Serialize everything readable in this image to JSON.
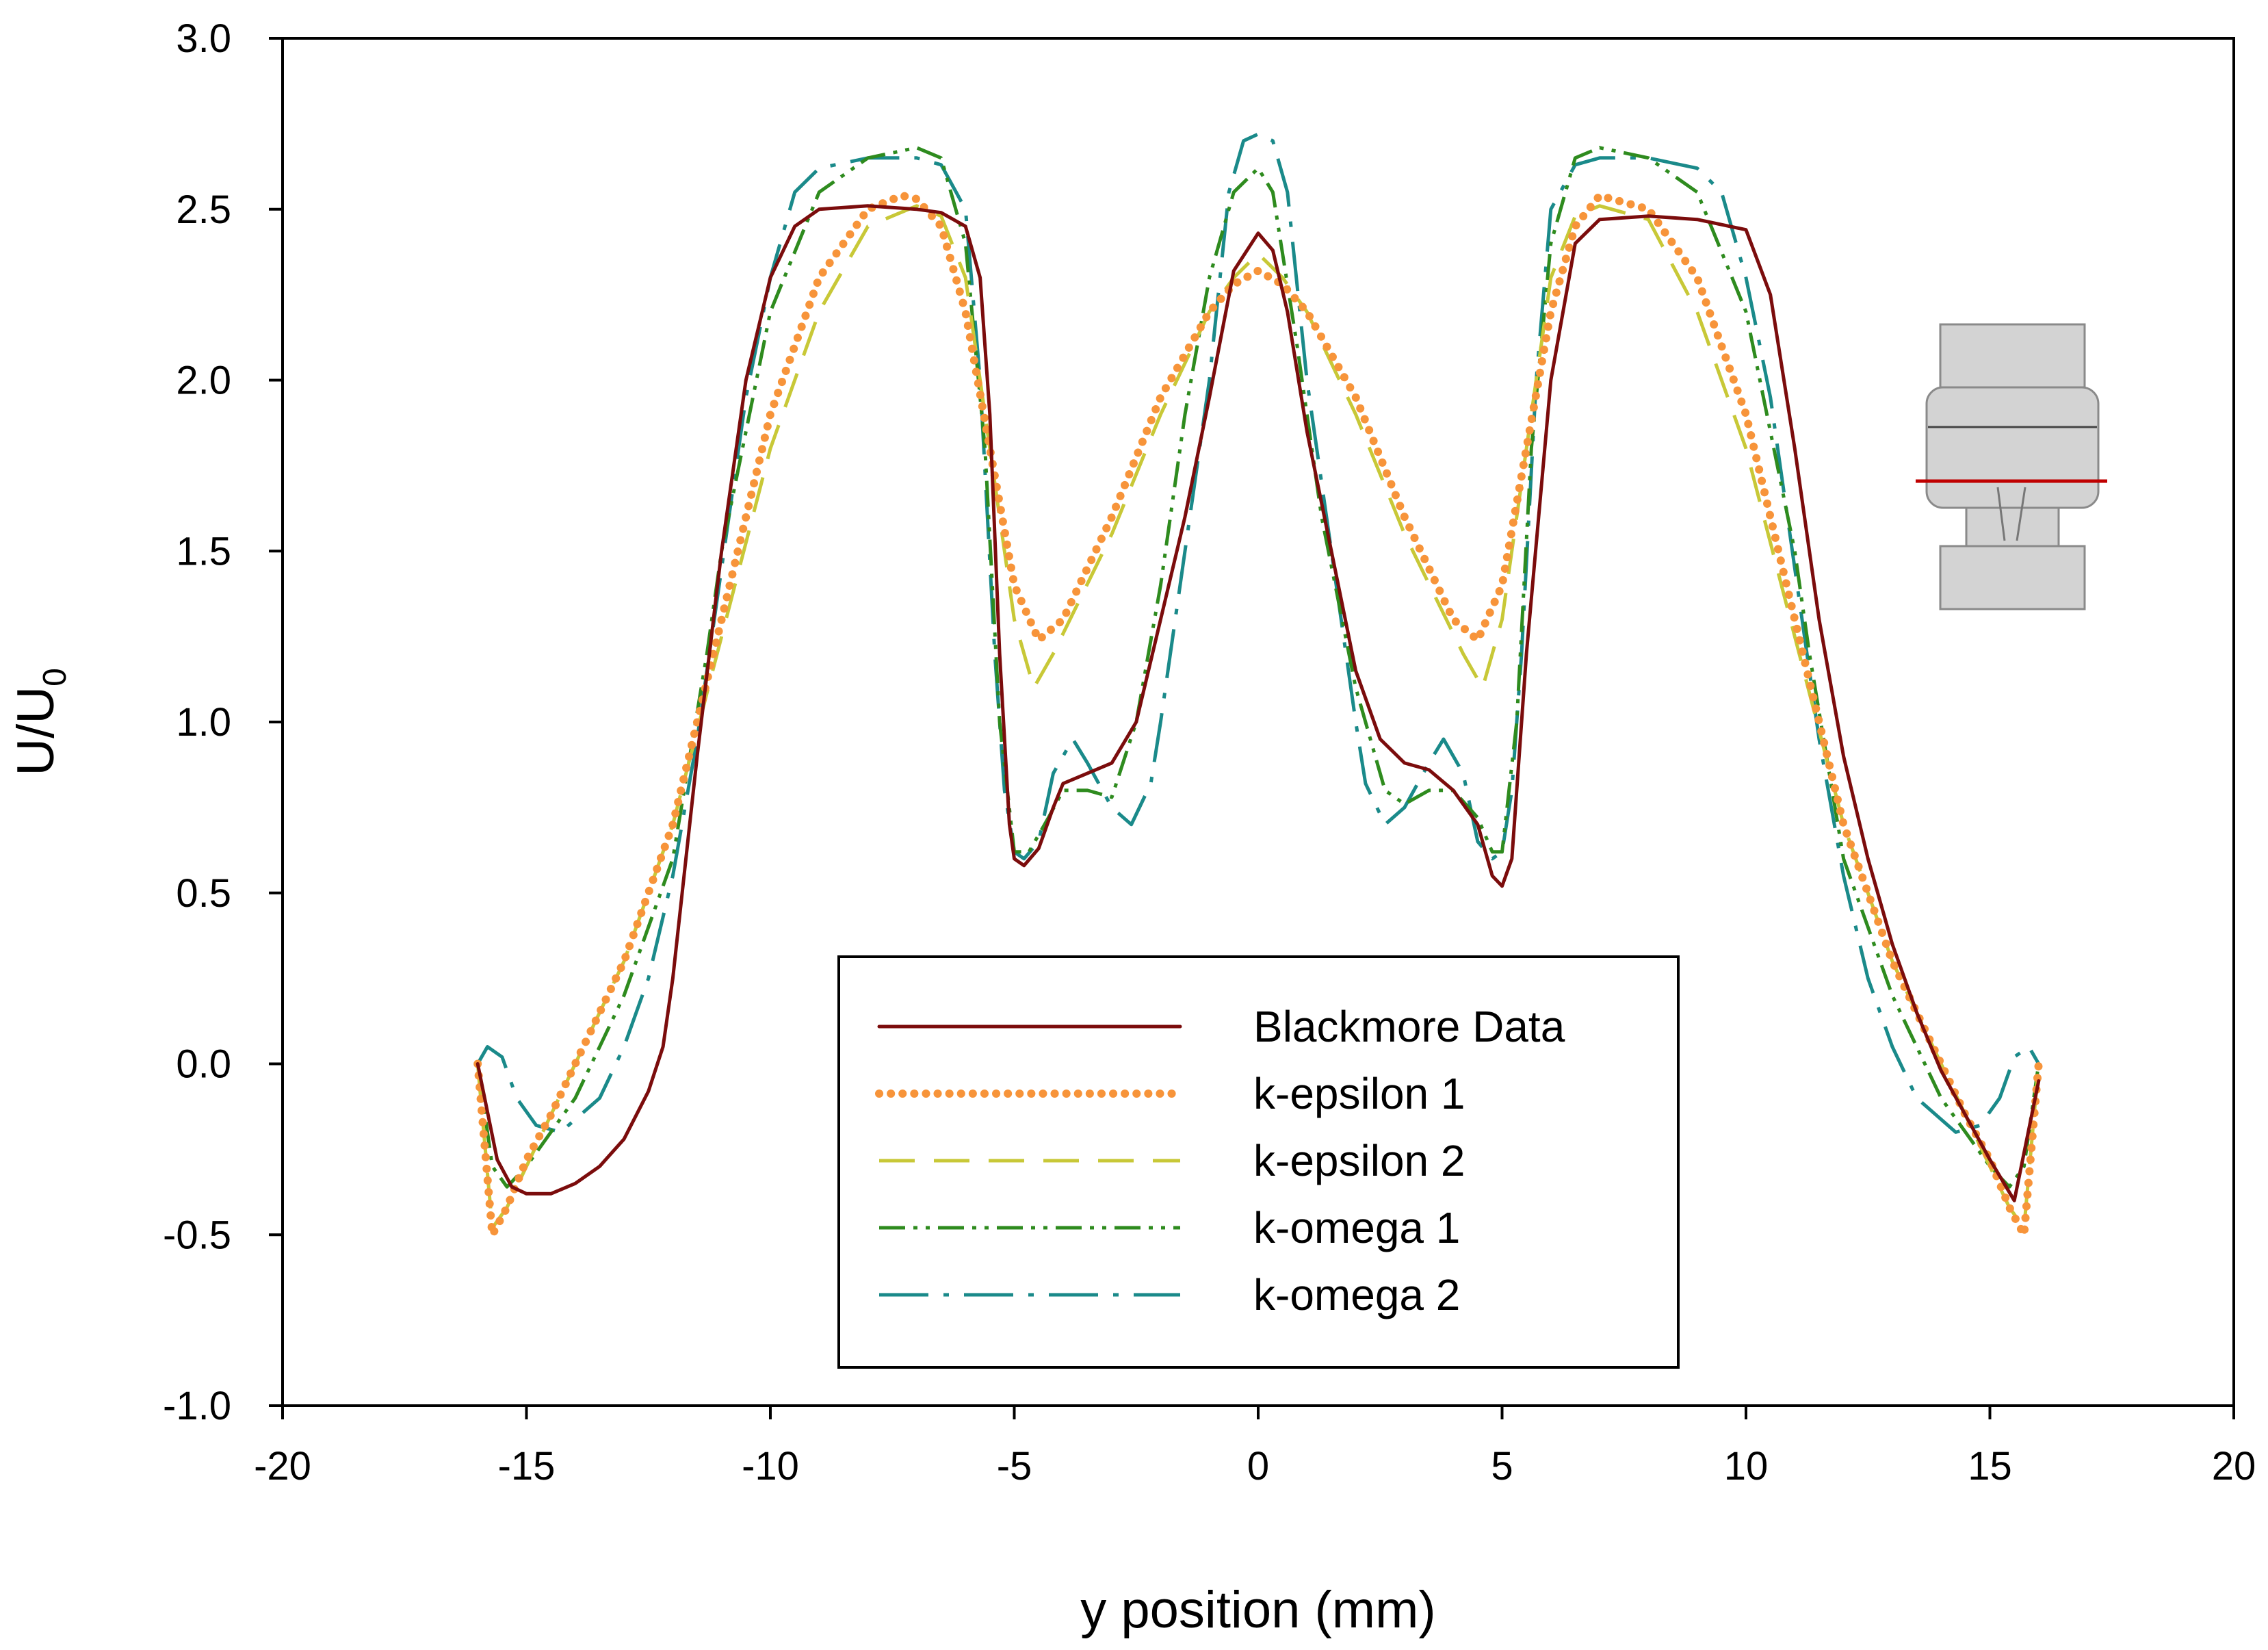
{
  "chart_data": {
    "type": "line",
    "title": "",
    "xlabel": "y position (mm)",
    "ylabel": "U/U",
    "ylabel_subscript": "0",
    "xlim": [
      -20,
      20
    ],
    "ylim": [
      -1.0,
      3.0
    ],
    "xticks": [
      "-20",
      "-15",
      "-10",
      "-5",
      "0",
      "5",
      "10",
      "15",
      "20"
    ],
    "yticks": [
      "3.0",
      "2.5",
      "2.0",
      "1.5",
      "1.0",
      "0.5",
      "0.0",
      "-0.5",
      "-1.0"
    ],
    "grid": false,
    "legend_position": "bottom-center",
    "inset": "schematic of nozzle geometry with red line marking the measurement plane",
    "series": [
      {
        "name": "Blackmore Data",
        "color": "#7b0c0c",
        "style": "solid",
        "x": [
          -16,
          -15.6,
          -15.3,
          -15,
          -14.5,
          -14,
          -13.5,
          -13,
          -12.5,
          -12.2,
          -12,
          -11.5,
          -11,
          -10.5,
          -10,
          -9.5,
          -9,
          -8,
          -7,
          -6.5,
          -6,
          -5.7,
          -5.5,
          -5.3,
          -5.1,
          -5,
          -4.8,
          -4.5,
          -4.2,
          -4,
          -3.5,
          -3,
          -2.5,
          -2,
          -1.5,
          -1,
          -0.5,
          0,
          0.3,
          0.6,
          1,
          1.5,
          2,
          2.5,
          3,
          3.5,
          4,
          4.5,
          4.8,
          5,
          5.2,
          5.5,
          6,
          6.5,
          7,
          8,
          9,
          10,
          10.5,
          11,
          11.5,
          12,
          12.5,
          13,
          13.5,
          14,
          14.5,
          15,
          15.5,
          16
        ],
        "y": [
          0.0,
          -0.28,
          -0.36,
          -0.38,
          -0.38,
          -0.35,
          -0.3,
          -0.22,
          -0.08,
          0.05,
          0.25,
          0.9,
          1.5,
          2.0,
          2.3,
          2.45,
          2.5,
          2.51,
          2.5,
          2.49,
          2.45,
          2.3,
          1.9,
          1.2,
          0.7,
          0.6,
          0.58,
          0.63,
          0.75,
          0.82,
          0.85,
          0.88,
          1.0,
          1.3,
          1.6,
          1.95,
          2.32,
          2.43,
          2.38,
          2.2,
          1.85,
          1.5,
          1.15,
          0.95,
          0.88,
          0.86,
          0.8,
          0.7,
          0.55,
          0.52,
          0.6,
          1.2,
          2.0,
          2.4,
          2.47,
          2.48,
          2.47,
          2.44,
          2.25,
          1.8,
          1.3,
          0.9,
          0.6,
          0.35,
          0.15,
          -0.02,
          -0.15,
          -0.28,
          -0.4,
          -0.05
        ]
      },
      {
        "name": "k-epsilon 1",
        "color": "#f7943a",
        "style": "dotted",
        "x": [
          -16,
          -15.7,
          -15.4,
          -15,
          -14.5,
          -14,
          -13,
          -12,
          -11,
          -10,
          -9,
          -8,
          -7.3,
          -7,
          -6.5,
          -6,
          -5.5,
          -5,
          -4.5,
          -4,
          -3,
          -2,
          -1,
          -0.5,
          0,
          0.5,
          1,
          2,
          3,
          4,
          4.5,
          5,
          5.5,
          6,
          6.5,
          7,
          7.5,
          8,
          9,
          10,
          11,
          12,
          13,
          14,
          14.5,
          15,
          15.4,
          15.7,
          16
        ],
        "y": [
          0.0,
          -0.5,
          -0.42,
          -0.28,
          -0.15,
          0.0,
          0.3,
          0.7,
          1.3,
          1.9,
          2.3,
          2.5,
          2.54,
          2.53,
          2.45,
          2.2,
          1.8,
          1.4,
          1.24,
          1.3,
          1.6,
          1.95,
          2.2,
          2.28,
          2.32,
          2.28,
          2.2,
          1.95,
          1.6,
          1.3,
          1.24,
          1.4,
          1.8,
          2.2,
          2.45,
          2.54,
          2.52,
          2.5,
          2.3,
          1.9,
          1.3,
          0.7,
          0.3,
          0.0,
          -0.15,
          -0.28,
          -0.42,
          -0.5,
          0.0
        ]
      },
      {
        "name": "k-epsilon 2",
        "color": "#c8c837",
        "style": "dashed",
        "x": [
          -16,
          -15.7,
          -15.4,
          -15,
          -14,
          -13,
          -12,
          -11,
          -10,
          -9,
          -8,
          -7,
          -6.5,
          -6,
          -5.5,
          -5,
          -4.6,
          -4.2,
          -3,
          -2,
          -1,
          -0.5,
          0,
          0.5,
          1,
          2,
          3,
          4.2,
          4.6,
          5,
          5.5,
          6,
          6.5,
          7,
          8,
          9,
          10,
          11,
          12,
          13,
          14,
          15,
          15.4,
          15.7,
          16
        ],
        "y": [
          0.0,
          -0.48,
          -0.42,
          -0.3,
          0.0,
          0.3,
          0.7,
          1.25,
          1.8,
          2.2,
          2.45,
          2.51,
          2.48,
          2.3,
          1.8,
          1.3,
          1.1,
          1.2,
          1.55,
          1.9,
          2.2,
          2.3,
          2.37,
          2.3,
          2.2,
          1.9,
          1.55,
          1.2,
          1.1,
          1.3,
          1.8,
          2.3,
          2.48,
          2.51,
          2.47,
          2.2,
          1.8,
          1.25,
          0.7,
          0.3,
          0.0,
          -0.3,
          -0.42,
          -0.48,
          0.0
        ]
      },
      {
        "name": "k-omega 1",
        "color": "#2e8b1e",
        "style": "dash-dot-dot",
        "x": [
          -16,
          -15.7,
          -15.4,
          -15,
          -14,
          -13,
          -12,
          -11.3,
          -11,
          -10,
          -9,
          -8,
          -7,
          -6.5,
          -6,
          -5.6,
          -5.3,
          -5,
          -4.7,
          -4.3,
          -4,
          -3.5,
          -3,
          -2.5,
          -2,
          -1.5,
          -1,
          -0.5,
          0,
          0.3,
          0.8,
          1.3,
          2,
          2.6,
          3,
          3.5,
          4,
          4.5,
          4.8,
          5,
          5.3,
          5.6,
          6,
          6.5,
          7,
          8,
          9,
          10,
          11,
          11.3,
          12,
          13,
          14,
          15,
          15.4,
          15.7,
          16
        ],
        "y": [
          0.0,
          -0.3,
          -0.36,
          -0.3,
          -0.1,
          0.2,
          0.6,
          1.2,
          1.5,
          2.2,
          2.55,
          2.65,
          2.68,
          2.65,
          2.4,
          1.8,
          1.0,
          0.62,
          0.62,
          0.72,
          0.8,
          0.8,
          0.78,
          1.0,
          1.4,
          1.9,
          2.3,
          2.55,
          2.62,
          2.55,
          2.1,
          1.6,
          1.1,
          0.8,
          0.76,
          0.8,
          0.8,
          0.72,
          0.62,
          0.62,
          1.0,
          1.8,
          2.4,
          2.65,
          2.68,
          2.65,
          2.55,
          2.2,
          1.5,
          1.2,
          0.6,
          0.2,
          -0.1,
          -0.3,
          -0.36,
          -0.3,
          0.0
        ]
      },
      {
        "name": "k-omega 2",
        "color": "#1a8a8a",
        "style": "long-dash-dot",
        "x": [
          -16,
          -15.8,
          -15.5,
          -15.2,
          -14.8,
          -14.3,
          -13.5,
          -13,
          -12.5,
          -12,
          -11.5,
          -11,
          -10.5,
          -10,
          -9.5,
          -9,
          -8,
          -7,
          -6.5,
          -6,
          -5.7,
          -5.4,
          -5.2,
          -5,
          -4.8,
          -4.5,
          -4.2,
          -3.8,
          -3.5,
          -3,
          -2.6,
          -2.2,
          -2,
          -1.5,
          -1,
          -0.6,
          -0.3,
          0,
          0.3,
          0.6,
          1,
          1.5,
          2,
          2.2,
          2.6,
          3,
          3.5,
          3.8,
          4.2,
          4.5,
          4.8,
          5,
          5.2,
          5.4,
          5.7,
          6,
          6.5,
          7,
          8,
          9,
          9.5,
          10,
          10.5,
          11,
          11.5,
          12,
          12.5,
          13,
          13.5,
          14.3,
          14.8,
          15.2,
          15.5,
          15.8,
          16
        ],
        "y": [
          0.0,
          0.05,
          0.02,
          -0.1,
          -0.18,
          -0.2,
          -0.1,
          0.05,
          0.25,
          0.55,
          0.95,
          1.45,
          1.95,
          2.3,
          2.55,
          2.62,
          2.65,
          2.65,
          2.63,
          2.5,
          2.0,
          1.2,
          0.8,
          0.62,
          0.6,
          0.65,
          0.85,
          0.95,
          0.88,
          0.75,
          0.7,
          0.82,
          1.0,
          1.5,
          2.0,
          2.55,
          2.7,
          2.72,
          2.7,
          2.55,
          2.0,
          1.5,
          1.0,
          0.82,
          0.7,
          0.75,
          0.88,
          0.95,
          0.85,
          0.65,
          0.6,
          0.62,
          0.8,
          1.2,
          2.0,
          2.5,
          2.63,
          2.65,
          2.65,
          2.62,
          2.55,
          2.3,
          1.95,
          1.45,
          0.95,
          0.55,
          0.25,
          0.05,
          -0.1,
          -0.2,
          -0.18,
          -0.1,
          0.02,
          0.05,
          0.0
        ]
      }
    ]
  }
}
